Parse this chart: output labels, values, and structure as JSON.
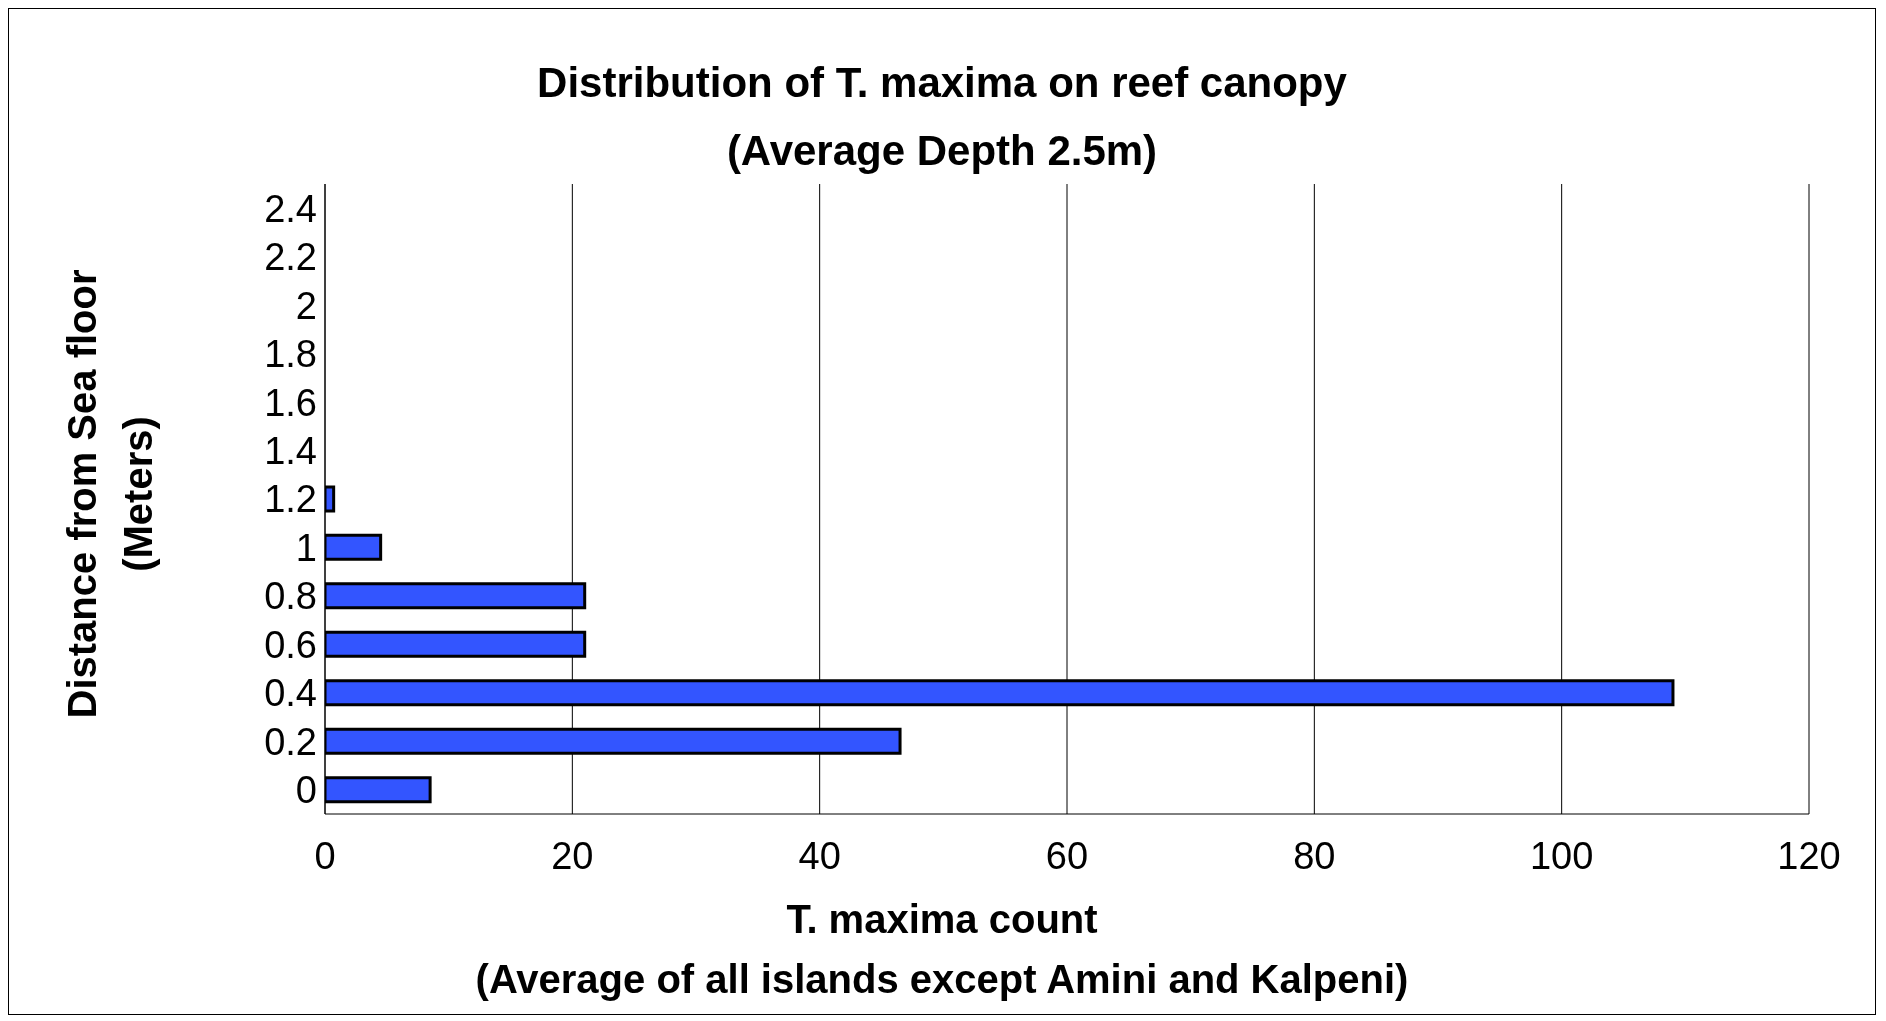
{
  "chart_data": {
    "type": "bar",
    "orientation": "horizontal",
    "title": "Distribution of T. maxima on reef canopy",
    "subtitle": "(Average Depth 2.5m)",
    "xlabel": "T. maxima count\n(Average of all islands except Amini and Kalpeni)",
    "ylabel": "Distance from Sea floor\n(Meters)",
    "categories": [
      "2.4",
      "2.2",
      "2",
      "1.8",
      "1.6",
      "1.4",
      "1.2",
      "1",
      "0.8",
      "0.6",
      "0.4",
      "0.2",
      "0"
    ],
    "values": [
      null,
      null,
      null,
      null,
      null,
      null,
      0.7,
      4.5,
      21,
      21,
      109,
      46.5,
      8.5
    ],
    "color": "#3355ff",
    "xlim": [
      0,
      120
    ],
    "xticks": [
      0,
      20,
      40,
      60,
      80,
      100,
      120
    ],
    "grid": "x"
  }
}
